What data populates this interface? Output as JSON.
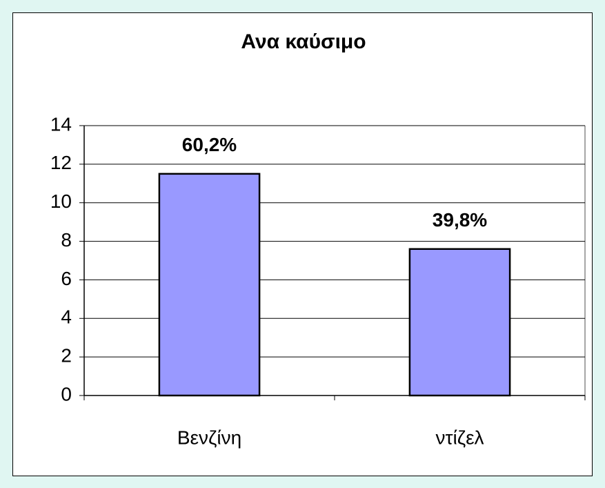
{
  "chart_data": {
    "type": "bar",
    "title": "Ανα καύσιμο",
    "categories": [
      "Βενζίνη",
      "ντίζελ"
    ],
    "values": [
      11.5,
      7.6
    ],
    "color": "#9999ff",
    "annotations": [
      "60,2%",
      "39,8%"
    ],
    "ylim": [
      0,
      14
    ],
    "yticks": [
      0,
      2,
      4,
      6,
      8,
      10,
      12,
      14
    ],
    "grid": true
  }
}
